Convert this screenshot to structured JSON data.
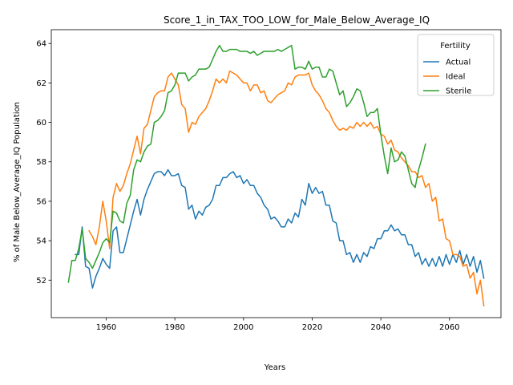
{
  "chart_data": {
    "type": "line",
    "title": "Score_1_in_TAX_TOO_LOW_for_Male_Below_Average_IQ",
    "xlabel": "Years",
    "ylabel": "% of Male Below_Average_IQ Population",
    "xlim": [
      1944,
      2075
    ],
    "ylim": [
      50.1,
      64.7
    ],
    "xticks": [
      1960,
      1980,
      2000,
      2020,
      2040,
      2060
    ],
    "yticks": [
      52,
      54,
      56,
      58,
      60,
      62,
      64
    ],
    "grid": false,
    "legend": {
      "title": "Fertility",
      "placement": "top-right"
    },
    "series": [
      {
        "name": "Actual",
        "color": "#1f77b4",
        "x": [
          1951,
          1952,
          1953,
          1954,
          1955,
          1956,
          1957,
          1958,
          1959,
          1960,
          1961,
          1962,
          1963,
          1964,
          1965,
          1966,
          1967,
          1968,
          1969,
          1970,
          1971,
          1972,
          1973,
          1974,
          1975,
          1976,
          1977,
          1978,
          1979,
          1980,
          1981,
          1982,
          1983,
          1984,
          1985,
          1986,
          1987,
          1988,
          1989,
          1990,
          1991,
          1992,
          1993,
          1994,
          1995,
          1996,
          1997,
          1998,
          1999,
          2000,
          2001,
          2002,
          2003,
          2004,
          2005,
          2006,
          2007,
          2008,
          2009,
          2010,
          2011,
          2012,
          2013,
          2014,
          2015,
          2016,
          2017,
          2018,
          2019,
          2020,
          2021,
          2022,
          2023,
          2024,
          2025,
          2026,
          2027,
          2028,
          2029,
          2030,
          2031,
          2032,
          2033,
          2034,
          2035,
          2036,
          2037,
          2038,
          2039,
          2040,
          2041,
          2042,
          2043,
          2044,
          2045,
          2046,
          2047,
          2048,
          2049,
          2050,
          2051,
          2052,
          2053,
          2054,
          2055,
          2056,
          2057,
          2058,
          2059,
          2060,
          2061,
          2062,
          2063,
          2064,
          2065,
          2066,
          2067,
          2068,
          2069,
          2070
        ],
        "y": [
          53.3,
          53.3,
          54.7,
          52.7,
          52.6,
          51.6,
          52.2,
          52.6,
          53.1,
          52.8,
          52.6,
          54.5,
          54.7,
          53.4,
          53.4,
          54.1,
          54.8,
          55.5,
          56.1,
          55.3,
          56.1,
          56.6,
          57.0,
          57.4,
          57.5,
          57.5,
          57.3,
          57.6,
          57.3,
          57.3,
          57.4,
          56.8,
          56.7,
          55.6,
          55.8,
          55.1,
          55.5,
          55.3,
          55.7,
          55.8,
          56.1,
          56.8,
          56.8,
          57.2,
          57.2,
          57.4,
          57.5,
          57.2,
          57.3,
          56.9,
          57.1,
          56.8,
          56.8,
          56.4,
          56.2,
          55.8,
          55.6,
          55.1,
          55.2,
          55.0,
          54.7,
          54.7,
          55.1,
          54.9,
          55.4,
          55.2,
          56.1,
          55.8,
          56.9,
          56.4,
          56.7,
          56.4,
          56.5,
          55.8,
          55.8,
          55.0,
          54.9,
          54.0,
          54.0,
          53.3,
          53.4,
          52.9,
          53.3,
          52.9,
          53.4,
          53.2,
          53.7,
          53.6,
          54.1,
          54.1,
          54.5,
          54.5,
          54.8,
          54.5,
          54.6,
          54.3,
          54.3,
          53.8,
          53.8,
          53.2,
          53.4,
          52.8,
          53.1,
          52.7,
          53.1,
          52.7,
          53.2,
          52.7,
          53.3,
          52.8,
          53.3,
          52.9,
          53.5,
          52.8,
          53.3,
          52.7,
          53.2,
          52.4,
          53.0,
          52.1
        ]
      },
      {
        "name": "Ideal",
        "color": "#ff7f0e",
        "x": [
          1955,
          1956,
          1957,
          1958,
          1959,
          1960,
          1961,
          1962,
          1963,
          1964,
          1965,
          1966,
          1967,
          1968,
          1969,
          1970,
          1971,
          1972,
          1973,
          1974,
          1975,
          1976,
          1977,
          1978,
          1979,
          1980,
          1981,
          1982,
          1983,
          1984,
          1985,
          1986,
          1987,
          1988,
          1989,
          1990,
          1991,
          1992,
          1993,
          1994,
          1995,
          1996,
          1997,
          1998,
          1999,
          2000,
          2001,
          2002,
          2003,
          2004,
          2005,
          2006,
          2007,
          2008,
          2009,
          2010,
          2011,
          2012,
          2013,
          2014,
          2015,
          2016,
          2017,
          2018,
          2019,
          2020,
          2021,
          2022,
          2023,
          2024,
          2025,
          2026,
          2027,
          2028,
          2029,
          2030,
          2031,
          2032,
          2033,
          2034,
          2035,
          2036,
          2037,
          2038,
          2039,
          2040,
          2041,
          2042,
          2043,
          2044,
          2045,
          2046,
          2047,
          2048,
          2049,
          2050,
          2051,
          2052,
          2053,
          2054,
          2055,
          2056,
          2057,
          2058,
          2059,
          2060,
          2061,
          2062,
          2063,
          2064,
          2065,
          2066,
          2067,
          2068,
          2069,
          2070
        ],
        "y": [
          54.5,
          54.2,
          53.8,
          54.7,
          56.0,
          55.0,
          53.6,
          56.2,
          56.9,
          56.5,
          56.8,
          57.4,
          57.9,
          58.6,
          59.3,
          58.4,
          59.7,
          59.9,
          60.6,
          61.3,
          61.5,
          61.6,
          61.6,
          62.3,
          62.5,
          62.2,
          61.9,
          60.9,
          60.7,
          59.5,
          60.0,
          59.9,
          60.3,
          60.5,
          60.7,
          61.1,
          61.6,
          62.2,
          62.0,
          62.2,
          62.0,
          62.6,
          62.5,
          62.4,
          62.2,
          62.0,
          62.0,
          61.6,
          61.9,
          61.9,
          61.5,
          61.6,
          61.1,
          61.0,
          61.2,
          61.4,
          61.5,
          61.6,
          62.0,
          61.9,
          62.3,
          62.4,
          62.4,
          62.4,
          62.5,
          61.9,
          61.6,
          61.4,
          61.1,
          60.7,
          60.5,
          60.1,
          59.8,
          59.6,
          59.7,
          59.6,
          59.8,
          59.7,
          60.0,
          59.8,
          60.0,
          59.8,
          60.0,
          59.7,
          59.8,
          59.4,
          59.3,
          58.9,
          59.1,
          58.6,
          58.5,
          58.2,
          58.0,
          57.8,
          57.5,
          57.5,
          57.2,
          57.3,
          56.7,
          56.9,
          56.0,
          56.2,
          55.0,
          55.1,
          54.1,
          54.0,
          53.3,
          53.3,
          53.2,
          52.7,
          52.8,
          52.1,
          52.4,
          51.3,
          52.0,
          50.7
        ]
      },
      {
        "name": "Sterile",
        "color": "#2ca02c",
        "x": [
          1949,
          1950,
          1951,
          1952,
          1953,
          1954,
          1955,
          1956,
          1957,
          1958,
          1959,
          1960,
          1961,
          1962,
          1963,
          1964,
          1965,
          1966,
          1967,
          1968,
          1969,
          1970,
          1971,
          1972,
          1973,
          1974,
          1975,
          1976,
          1977,
          1978,
          1979,
          1980,
          1981,
          1982,
          1983,
          1984,
          1985,
          1986,
          1987,
          1988,
          1989,
          1990,
          1991,
          1992,
          1993,
          1994,
          1995,
          1996,
          1997,
          1998,
          1999,
          2000,
          2001,
          2002,
          2003,
          2004,
          2005,
          2006,
          2007,
          2008,
          2009,
          2010,
          2011,
          2012,
          2013,
          2014,
          2015,
          2016,
          2017,
          2018,
          2019,
          2020,
          2021,
          2022,
          2023,
          2024,
          2025,
          2026,
          2027,
          2028,
          2029,
          2030,
          2031,
          2032,
          2033,
          2034,
          2035,
          2036,
          2037,
          2038,
          2039,
          2040,
          2041,
          2042,
          2043,
          2044,
          2045,
          2046,
          2047,
          2048,
          2049,
          2050,
          2051,
          2052,
          2053
        ],
        "y": [
          51.9,
          53.0,
          53.0,
          53.6,
          54.6,
          53.1,
          52.9,
          52.6,
          53.0,
          53.4,
          53.9,
          54.1,
          53.9,
          55.5,
          55.4,
          55.0,
          54.9,
          55.9,
          56.3,
          57.6,
          58.1,
          58.0,
          58.5,
          58.8,
          58.9,
          60.0,
          60.1,
          60.3,
          60.6,
          61.5,
          61.6,
          61.9,
          62.5,
          62.5,
          62.5,
          62.1,
          62.3,
          62.4,
          62.7,
          62.7,
          62.7,
          62.8,
          63.2,
          63.6,
          63.9,
          63.6,
          63.6,
          63.7,
          63.7,
          63.7,
          63.6,
          63.6,
          63.6,
          63.5,
          63.6,
          63.4,
          63.5,
          63.6,
          63.6,
          63.6,
          63.6,
          63.7,
          63.6,
          63.7,
          63.8,
          63.9,
          62.7,
          62.8,
          62.8,
          62.7,
          63.1,
          62.7,
          62.8,
          62.8,
          62.3,
          62.3,
          62.7,
          62.6,
          62.0,
          61.4,
          61.6,
          60.8,
          61.0,
          61.3,
          61.7,
          61.6,
          61.0,
          60.3,
          60.5,
          60.5,
          60.7,
          59.4,
          58.3,
          57.4,
          58.7,
          58.0,
          58.1,
          58.5,
          58.3,
          57.6,
          56.9,
          56.7,
          57.6,
          58.2,
          58.9
        ]
      }
    ]
  }
}
